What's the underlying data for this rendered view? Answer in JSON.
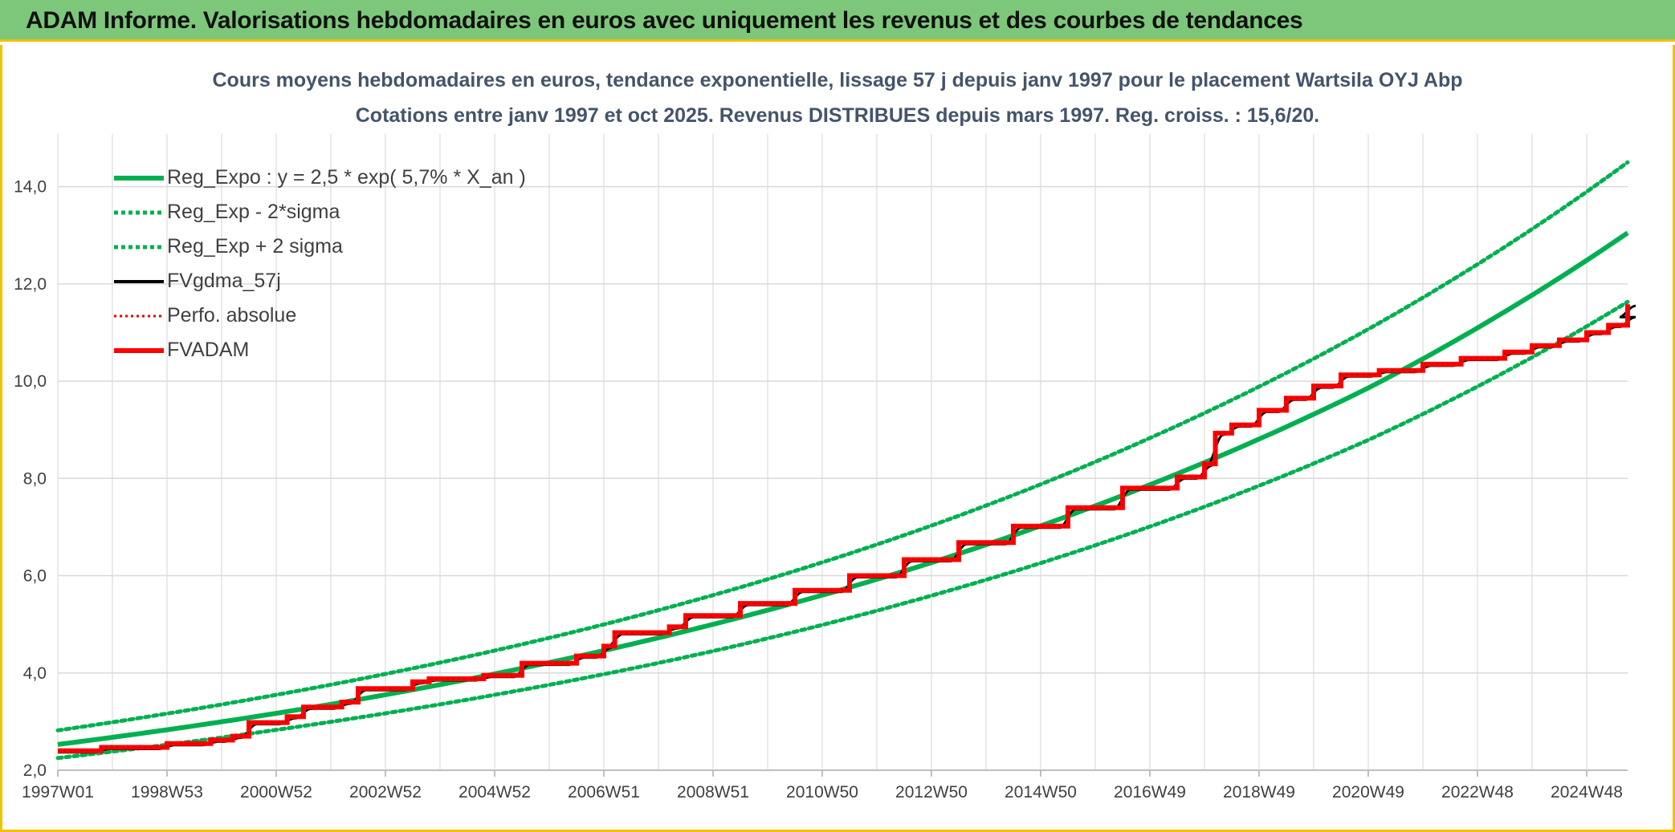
{
  "header": {
    "title": "ADAM Informe. Valorisations hebdomadaires en euros avec uniquement les revenus et des courbes de tendances"
  },
  "chart_data": {
    "type": "line",
    "title": "Cours moyens hebdomadaires en euros, tendance exponentielle, lissage 57 j depuis janv 1997 pour le placement Wartsila OYJ Abp",
    "subtitle": "Cotations entre janv 1997 et oct 2025. Revenus DISTRIBUES depuis mars 1997. Reg. croiss. : 15,6/20.",
    "xlabel": "",
    "ylabel": "",
    "ylim": [
      2.0,
      15.0
    ],
    "yticks": [
      "2,0",
      "4,0",
      "6,0",
      "8,0",
      "10,0",
      "12,0",
      "14,0"
    ],
    "ytick_values": [
      2,
      4,
      6,
      8,
      10,
      12,
      14
    ],
    "xlim": [
      1997.0,
      2025.75
    ],
    "xticks": [
      "1997W01",
      "1998W53",
      "2000W52",
      "2002W52",
      "2004W52",
      "2006W51",
      "2008W51",
      "2010W50",
      "2012W50",
      "2014W50",
      "2016W49",
      "2018W49",
      "2020W49",
      "2022W48",
      "2024W48"
    ],
    "xtick_values": [
      1997.0,
      1999.0,
      2001.0,
      2003.0,
      2005.0,
      2007.0,
      2009.0,
      2011.0,
      2013.0,
      2015.0,
      2017.0,
      2019.0,
      2021.0,
      2023.0,
      2025.0
    ],
    "grid": true,
    "legend_position": "top-left",
    "series": [
      {
        "name": "Reg_Expo : y = 2,5 * exp( 5,7% *  X_an )",
        "color": "#00b050",
        "style": "solid",
        "x": [
          1997.0,
          2001.0,
          2005.0,
          2009.0,
          2013.0,
          2017.0,
          2021.0,
          2025.75
        ],
        "y": [
          2.53,
          3.17,
          3.98,
          5.0,
          6.27,
          7.87,
          9.86,
          13.05
        ]
      },
      {
        "name": "Reg_Exp - 2*sigma",
        "color": "#00b050",
        "style": "dotted",
        "x": [
          1997.0,
          2001.0,
          2005.0,
          2009.0,
          2013.0,
          2017.0,
          2021.0,
          2025.75
        ],
        "y": [
          2.25,
          2.83,
          3.55,
          4.45,
          5.59,
          7.01,
          8.79,
          11.63
        ]
      },
      {
        "name": "Reg_Exp + 2 sigma",
        "color": "#00b050",
        "style": "dotted",
        "x": [
          1997.0,
          2001.0,
          2005.0,
          2009.0,
          2013.0,
          2017.0,
          2021.0,
          2025.75
        ],
        "y": [
          2.82,
          3.55,
          4.46,
          5.6,
          7.03,
          8.83,
          11.07,
          14.5
        ]
      },
      {
        "name": "FVgdma_57j",
        "color": "#000000",
        "style": "solid",
        "width": 3
      },
      {
        "name": "Perfo. absolue",
        "color": "#e00000",
        "style": "dotted"
      },
      {
        "name": "FVADAM",
        "color": "#ff0000",
        "style": "solid",
        "width": 6,
        "steps": [
          {
            "x": 1997.0,
            "y": 2.4
          },
          {
            "x": 1997.8,
            "y": 2.47
          },
          {
            "x": 1999.0,
            "y": 2.55
          },
          {
            "x": 1999.8,
            "y": 2.62
          },
          {
            "x": 2000.2,
            "y": 2.7
          },
          {
            "x": 2000.5,
            "y": 2.98
          },
          {
            "x": 2001.2,
            "y": 3.1
          },
          {
            "x": 2001.5,
            "y": 3.3
          },
          {
            "x": 2002.2,
            "y": 3.4
          },
          {
            "x": 2002.5,
            "y": 3.68
          },
          {
            "x": 2003.5,
            "y": 3.82
          },
          {
            "x": 2003.8,
            "y": 3.88
          },
          {
            "x": 2004.8,
            "y": 3.95
          },
          {
            "x": 2005.5,
            "y": 4.2
          },
          {
            "x": 2006.5,
            "y": 4.35
          },
          {
            "x": 2007.0,
            "y": 4.55
          },
          {
            "x": 2007.2,
            "y": 4.83
          },
          {
            "x": 2008.2,
            "y": 4.95
          },
          {
            "x": 2008.5,
            "y": 5.18
          },
          {
            "x": 2009.5,
            "y": 5.43
          },
          {
            "x": 2010.5,
            "y": 5.7
          },
          {
            "x": 2011.5,
            "y": 6.0
          },
          {
            "x": 2012.5,
            "y": 6.33
          },
          {
            "x": 2013.5,
            "y": 6.68
          },
          {
            "x": 2014.5,
            "y": 7.02
          },
          {
            "x": 2015.5,
            "y": 7.4
          },
          {
            "x": 2016.5,
            "y": 7.8
          },
          {
            "x": 2017.5,
            "y": 8.03
          },
          {
            "x": 2018.0,
            "y": 8.3
          },
          {
            "x": 2018.2,
            "y": 8.93
          },
          {
            "x": 2018.5,
            "y": 9.1
          },
          {
            "x": 2019.0,
            "y": 9.4
          },
          {
            "x": 2019.5,
            "y": 9.65
          },
          {
            "x": 2020.0,
            "y": 9.9
          },
          {
            "x": 2020.5,
            "y": 10.13
          },
          {
            "x": 2021.2,
            "y": 10.22
          },
          {
            "x": 2022.0,
            "y": 10.35
          },
          {
            "x": 2022.7,
            "y": 10.47
          },
          {
            "x": 2023.5,
            "y": 10.6
          },
          {
            "x": 2024.0,
            "y": 10.73
          },
          {
            "x": 2024.5,
            "y": 10.85
          },
          {
            "x": 2025.0,
            "y": 11.0
          },
          {
            "x": 2025.4,
            "y": 11.15
          },
          {
            "x": 2025.75,
            "y": 11.35
          }
        ],
        "end_y": 11.58
      }
    ]
  }
}
